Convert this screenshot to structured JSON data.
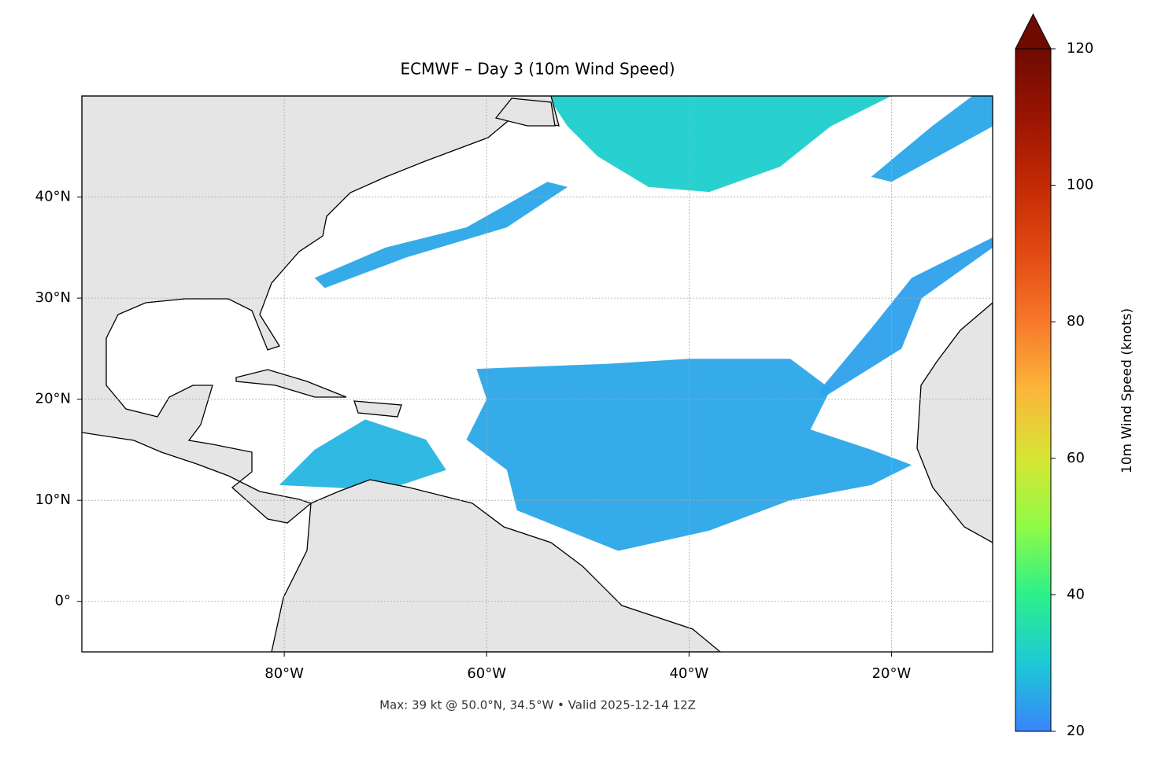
{
  "chart_data": {
    "type": "map",
    "title": "ECMWF – Day 3 (10m Wind Speed)",
    "footer": "Max: 39 kt @ 50.0°N, 34.5°W • Valid 2025-12-14 12Z",
    "xlim": [
      -100,
      -10
    ],
    "ylim": [
      -5,
      50
    ],
    "xticks": [
      {
        "value": -80,
        "label": "80°W"
      },
      {
        "value": -60,
        "label": "60°W"
      },
      {
        "value": -40,
        "label": "40°W"
      },
      {
        "value": -20,
        "label": "20°W"
      }
    ],
    "yticks": [
      {
        "value": 0,
        "label": "0°"
      },
      {
        "value": 10,
        "label": "10°N"
      },
      {
        "value": 20,
        "label": "20°N"
      },
      {
        "value": 30,
        "label": "30°N"
      },
      {
        "value": 40,
        "label": "40°N"
      }
    ],
    "grid": true,
    "colorbar": {
      "label": "10m Wind Speed (knots)",
      "clim": [
        20,
        120
      ],
      "ticks": [
        20,
        40,
        60,
        80,
        100,
        120
      ],
      "extend": "max"
    },
    "regions": [
      {
        "speed": 31,
        "lon": [
          -54,
          -20,
          -26,
          -31,
          -38,
          -44,
          -49,
          -52
        ],
        "lat": [
          50,
          50,
          47,
          43,
          40.5,
          41,
          44,
          47
        ]
      },
      {
        "speed": 25,
        "lon": [
          -12,
          -10,
          -10,
          -20,
          -22,
          -16
        ],
        "lat": [
          50,
          50,
          47,
          41.5,
          42,
          47
        ]
      },
      {
        "speed": 25,
        "lon": [
          -77,
          -70,
          -62,
          -54,
          -52,
          -58,
          -68,
          -76
        ],
        "lat": [
          32,
          35,
          37,
          41.5,
          41,
          37,
          34,
          31
        ]
      },
      {
        "speed": 24,
        "lon": [
          -27,
          -22,
          -18,
          -10,
          -10,
          -17,
          -19,
          -27
        ],
        "lat": [
          21,
          27,
          32,
          36,
          35,
          30,
          25,
          20
        ]
      },
      {
        "speed": 25,
        "lon": [
          -61,
          -48,
          -40,
          -30,
          -26,
          -28,
          -22,
          -18,
          -22,
          -30,
          -38,
          -47,
          -52,
          -57,
          -58,
          -62,
          -60
        ],
        "lat": [
          23,
          23.5,
          24,
          24,
          21,
          17,
          15,
          13.5,
          11.5,
          10,
          7,
          5,
          7,
          9,
          13,
          16,
          20
        ]
      },
      {
        "speed": 27,
        "lon": [
          -80.5,
          -77,
          -72,
          -66,
          -64,
          -70,
          -76
        ],
        "lat": [
          11.5,
          15,
          18,
          16,
          13,
          11,
          11.3
        ]
      }
    ]
  }
}
